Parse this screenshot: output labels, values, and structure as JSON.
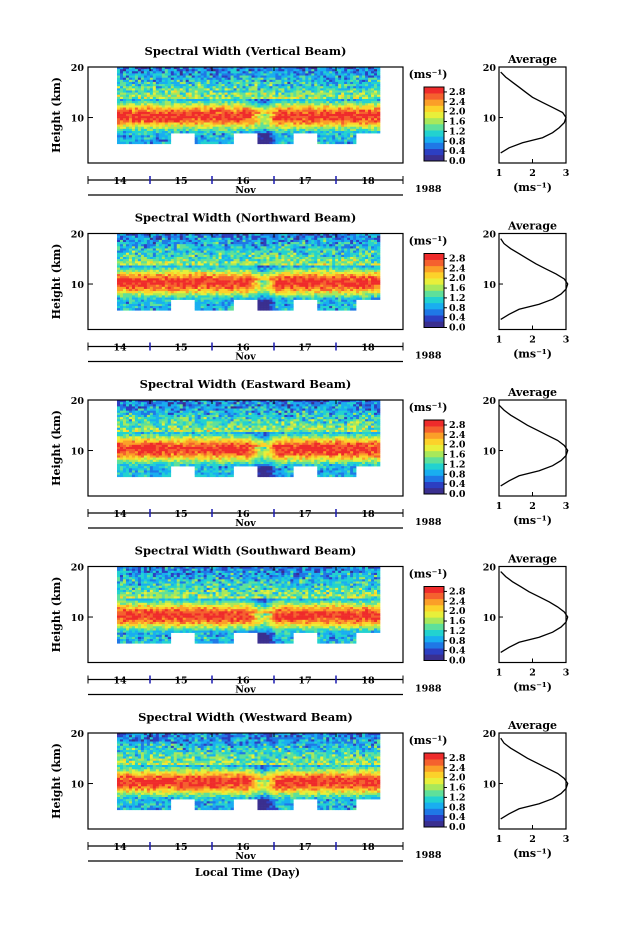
{
  "colors": {
    "scale": [
      "#3a2f8f",
      "#2c3fc2",
      "#1f78e6",
      "#19aef0",
      "#22d2d0",
      "#5ee09a",
      "#a8e85a",
      "#e8ef3a",
      "#fcd22a",
      "#fb9f28",
      "#f5612e",
      "#ef2b2b"
    ],
    "missing": "#ffffff",
    "axis": "#000000",
    "day_marker": "#1a1ab0"
  },
  "chart_data": [
    {
      "type": "heatmap",
      "title": "Spectral Width (Vertical Beam)",
      "ylabel": "Height (km)",
      "y_ticks": [
        "20",
        "10"
      ],
      "ylim": [
        1,
        20
      ],
      "x_tick_labels": [
        "14",
        "15",
        "16",
        "17",
        "18"
      ],
      "x_month": "Nov",
      "year": "1988",
      "colorbar": {
        "unit": "(ms⁻¹)",
        "ticks": [
          "2.8",
          "2.4",
          "2.0",
          "1.6",
          "1.2",
          "0.8",
          "0.4",
          "0.0"
        ],
        "range": [
          0,
          3
        ]
      },
      "average_profile": {
        "title": "Average",
        "xlabel": "(ms⁻¹)",
        "x_ticks": [
          "1",
          "2",
          "3"
        ],
        "xlim": [
          1,
          3
        ],
        "y_ticks": [
          "20",
          "10"
        ],
        "height_km": [
          3,
          4,
          5,
          6,
          7,
          8,
          9,
          10,
          11,
          12,
          13,
          14,
          15,
          16,
          17,
          18,
          19
        ],
        "width_ms": [
          1.05,
          1.3,
          1.7,
          2.3,
          2.6,
          2.8,
          2.95,
          3.0,
          2.9,
          2.6,
          2.3,
          2.0,
          1.8,
          1.6,
          1.4,
          1.2,
          1.05
        ]
      }
    },
    {
      "type": "heatmap",
      "title": "Spectral Width (Northward Beam)",
      "ylabel": "Height (km)",
      "y_ticks": [
        "20",
        "10"
      ],
      "ylim": [
        1,
        20
      ],
      "x_tick_labels": [
        "14",
        "15",
        "16",
        "17",
        "18"
      ],
      "x_month": "Nov",
      "year": "1988",
      "colorbar": {
        "unit": "(ms⁻¹)",
        "ticks": [
          "2.8",
          "2.4",
          "2.0",
          "1.6",
          "1.2",
          "0.8",
          "0.4",
          "0.0"
        ],
        "range": [
          0,
          3
        ]
      },
      "average_profile": {
        "title": "Average",
        "xlabel": "(ms⁻¹)",
        "x_ticks": [
          "1",
          "2",
          "3"
        ],
        "xlim": [
          1,
          3
        ],
        "y_ticks": [
          "20",
          "10"
        ],
        "height_km": [
          3,
          4,
          5,
          6,
          7,
          8,
          9,
          10,
          11,
          12,
          13,
          14,
          15,
          16,
          17,
          18,
          19
        ],
        "width_ms": [
          1.05,
          1.3,
          1.6,
          2.2,
          2.6,
          2.85,
          3.0,
          3.05,
          2.95,
          2.7,
          2.4,
          2.1,
          1.85,
          1.6,
          1.35,
          1.15,
          1.05
        ]
      }
    },
    {
      "type": "heatmap",
      "title": "Spectral Width (Eastward Beam)",
      "ylabel": "Height (km)",
      "y_ticks": [
        "20",
        "10"
      ],
      "ylim": [
        1,
        20
      ],
      "x_tick_labels": [
        "14",
        "15",
        "16",
        "17",
        "18"
      ],
      "x_month": "Nov",
      "year": "1988",
      "colorbar": {
        "unit": "(ms⁻¹)",
        "ticks": [
          "2.8",
          "2.4",
          "2.0",
          "1.6",
          "1.2",
          "0.8",
          "0.4",
          "0.0"
        ],
        "range": [
          0,
          3
        ]
      },
      "average_profile": {
        "title": "Average",
        "xlabel": "(ms⁻¹)",
        "x_ticks": [
          "1",
          "2",
          "3"
        ],
        "xlim": [
          1,
          3
        ],
        "y_ticks": [
          "20",
          "10"
        ],
        "height_km": [
          3,
          4,
          5,
          6,
          7,
          8,
          9,
          10,
          11,
          12,
          13,
          14,
          15,
          16,
          17,
          18,
          19
        ],
        "width_ms": [
          1.05,
          1.3,
          1.6,
          2.2,
          2.6,
          2.85,
          3.0,
          3.05,
          2.95,
          2.75,
          2.45,
          2.15,
          1.85,
          1.6,
          1.35,
          1.15,
          1.0
        ]
      }
    },
    {
      "type": "heatmap",
      "title": "Spectral Width (Southward Beam)",
      "ylabel": "Height (km)",
      "y_ticks": [
        "20",
        "10"
      ],
      "ylim": [
        1,
        20
      ],
      "x_tick_labels": [
        "14",
        "15",
        "16",
        "17",
        "18"
      ],
      "x_month": "Nov",
      "year": "1988",
      "colorbar": {
        "unit": "(ms⁻¹)",
        "ticks": [
          "2.8",
          "2.4",
          "2.0",
          "1.6",
          "1.2",
          "0.8",
          "0.4",
          "0.0"
        ],
        "range": [
          0,
          3
        ]
      },
      "average_profile": {
        "title": "Average",
        "xlabel": "(ms⁻¹)",
        "x_ticks": [
          "1",
          "2",
          "3"
        ],
        "xlim": [
          1,
          3
        ],
        "y_ticks": [
          "20",
          "10"
        ],
        "height_km": [
          3,
          4,
          5,
          6,
          7,
          8,
          9,
          10,
          11,
          12,
          13,
          14,
          15,
          16,
          17,
          18,
          19
        ],
        "width_ms": [
          1.05,
          1.3,
          1.6,
          2.2,
          2.6,
          2.85,
          3.0,
          3.05,
          2.95,
          2.75,
          2.5,
          2.2,
          1.9,
          1.65,
          1.4,
          1.2,
          1.05
        ]
      }
    },
    {
      "type": "heatmap",
      "title": "Spectral Width (Westward Beam)",
      "ylabel": "Height (km)",
      "y_ticks": [
        "20",
        "10"
      ],
      "ylim": [
        1,
        20
      ],
      "x_tick_labels": [
        "14",
        "15",
        "16",
        "17",
        "18"
      ],
      "x_month": "Nov",
      "year": "1988",
      "xlabel": "Local Time (Day)",
      "colorbar": {
        "unit": "(ms⁻¹)",
        "ticks": [
          "2.8",
          "2.4",
          "2.0",
          "1.6",
          "1.2",
          "0.8",
          "0.4",
          "0.0"
        ],
        "range": [
          0,
          3
        ]
      },
      "average_profile": {
        "title": "Average",
        "xlabel": "(ms⁻¹)",
        "x_ticks": [
          "1",
          "2",
          "3"
        ],
        "xlim": [
          1,
          3
        ],
        "y_ticks": [
          "20",
          "10"
        ],
        "height_km": [
          3,
          4,
          5,
          6,
          7,
          8,
          9,
          10,
          11,
          12,
          13,
          14,
          15,
          16,
          17,
          18,
          19
        ],
        "width_ms": [
          1.05,
          1.3,
          1.6,
          2.2,
          2.6,
          2.85,
          3.0,
          3.05,
          2.95,
          2.75,
          2.45,
          2.15,
          1.85,
          1.6,
          1.35,
          1.15,
          1.05
        ]
      }
    }
  ]
}
